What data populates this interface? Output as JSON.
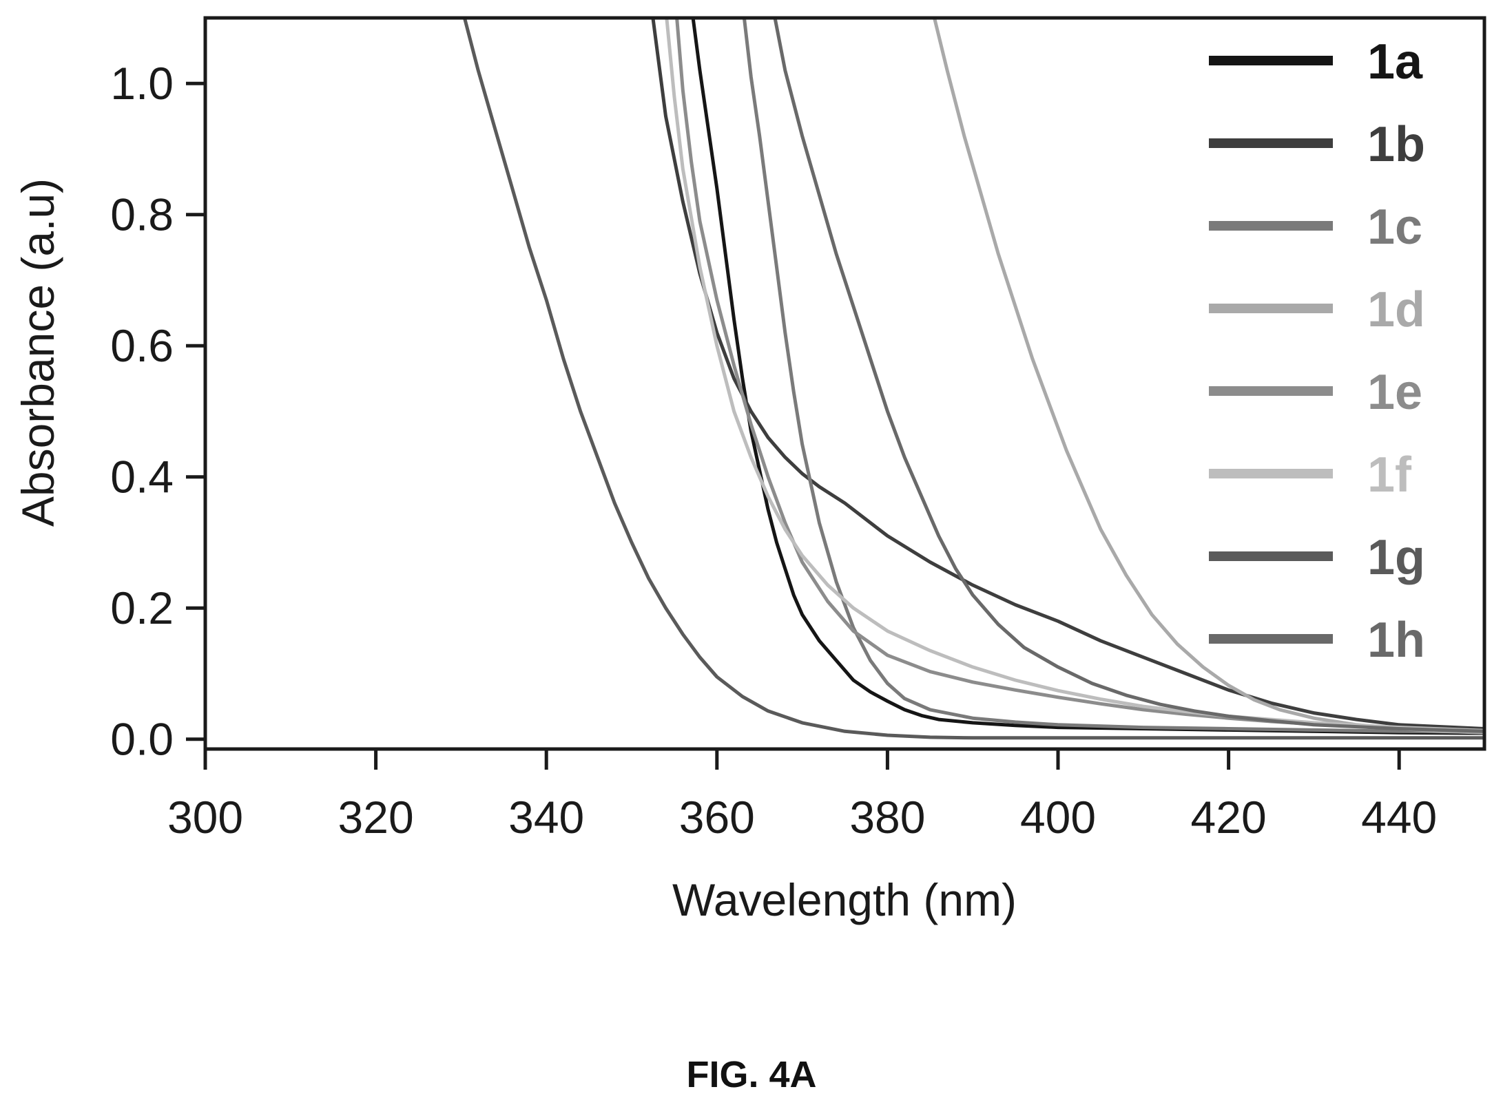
{
  "figure": {
    "caption": "FIG. 4A"
  },
  "chart_data": {
    "type": "line",
    "title": "",
    "xlabel": "Wavelength (nm)",
    "ylabel": "Absorbance (a.u)",
    "xlim": [
      300,
      450
    ],
    "ylim": [
      -0.015,
      1.1
    ],
    "xticks": [
      300,
      320,
      340,
      360,
      380,
      400,
      420,
      440
    ],
    "xtick_labels": [
      "300",
      "320",
      "340",
      "360",
      "380",
      "400",
      "420",
      "440"
    ],
    "yticks": [
      0.0,
      0.2,
      0.4,
      0.6,
      0.8,
      1.0
    ],
    "ytick_labels": [
      "0.0",
      "0.2",
      "0.4",
      "0.6",
      "0.8",
      "1.0"
    ],
    "grid": false,
    "legend_position": "top-right",
    "series": [
      {
        "name": "1a",
        "color": "#151515",
        "x": [
          357.2,
          358,
          359,
          360,
          361,
          362,
          363,
          364,
          365,
          366,
          367,
          368,
          369,
          370,
          372,
          374,
          376,
          378,
          380,
          382,
          384,
          386,
          390,
          395,
          400,
          410,
          420,
          430,
          440,
          450
        ],
        "y": [
          1.1,
          1.02,
          0.93,
          0.84,
          0.74,
          0.64,
          0.55,
          0.47,
          0.41,
          0.35,
          0.3,
          0.26,
          0.22,
          0.19,
          0.15,
          0.12,
          0.09,
          0.072,
          0.058,
          0.045,
          0.036,
          0.03,
          0.025,
          0.021,
          0.018,
          0.016,
          0.014,
          0.012,
          0.01,
          0.009
        ]
      },
      {
        "name": "1b",
        "color": "#3e3e3e",
        "x": [
          352.5,
          354,
          356,
          358,
          360,
          362,
          364,
          366,
          368,
          370,
          372,
          375,
          378,
          380,
          385,
          390,
          395,
          400,
          405,
          410,
          415,
          420,
          425,
          430,
          435,
          440,
          450
        ],
        "y": [
          1.1,
          0.95,
          0.82,
          0.71,
          0.62,
          0.55,
          0.5,
          0.46,
          0.43,
          0.405,
          0.385,
          0.36,
          0.33,
          0.31,
          0.27,
          0.235,
          0.205,
          0.18,
          0.15,
          0.125,
          0.1,
          0.075,
          0.055,
          0.04,
          0.03,
          0.022,
          0.016
        ]
      },
      {
        "name": "1c",
        "color": "#7a7a7a",
        "x": [
          363.2,
          364,
          365,
          366,
          367,
          368,
          369,
          370,
          371,
          372,
          374,
          376,
          378,
          380,
          382,
          385,
          390,
          395,
          400,
          410,
          420,
          430,
          440,
          450
        ],
        "y": [
          1.1,
          1.01,
          0.92,
          0.82,
          0.72,
          0.62,
          0.53,
          0.45,
          0.39,
          0.33,
          0.24,
          0.17,
          0.12,
          0.085,
          0.062,
          0.045,
          0.032,
          0.026,
          0.022,
          0.018,
          0.016,
          0.014,
          0.012,
          0.011
        ]
      },
      {
        "name": "1d",
        "color": "#a9a9a9",
        "x": [
          385.5,
          387,
          389,
          391,
          393,
          395,
          397,
          399,
          401,
          403,
          405,
          408,
          411,
          414,
          417,
          420,
          423,
          426,
          430,
          435,
          440,
          445,
          450
        ],
        "y": [
          1.1,
          1.02,
          0.92,
          0.83,
          0.74,
          0.66,
          0.58,
          0.51,
          0.44,
          0.38,
          0.32,
          0.25,
          0.19,
          0.145,
          0.11,
          0.082,
          0.06,
          0.045,
          0.032,
          0.022,
          0.016,
          0.012,
          0.01
        ]
      },
      {
        "name": "1e",
        "color": "#8c8c8c",
        "x": [
          355.3,
          356,
          357,
          358,
          360,
          362,
          364,
          366,
          368,
          370,
          373,
          376,
          380,
          385,
          390,
          395,
          400,
          405,
          410,
          415,
          420,
          425,
          430,
          440,
          450
        ],
        "y": [
          1.1,
          0.99,
          0.88,
          0.79,
          0.67,
          0.57,
          0.48,
          0.4,
          0.33,
          0.27,
          0.21,
          0.165,
          0.128,
          0.103,
          0.087,
          0.075,
          0.064,
          0.054,
          0.045,
          0.038,
          0.032,
          0.027,
          0.023,
          0.016,
          0.012
        ]
      },
      {
        "name": "1f",
        "color": "#bdbdbd",
        "x": [
          354.1,
          355,
          356,
          358,
          360,
          362,
          364,
          366,
          368,
          370,
          373,
          376,
          380,
          385,
          390,
          395,
          400,
          405,
          410,
          415,
          420,
          430,
          440,
          450
        ],
        "y": [
          1.1,
          0.98,
          0.87,
          0.72,
          0.6,
          0.5,
          0.43,
          0.37,
          0.32,
          0.28,
          0.235,
          0.2,
          0.165,
          0.135,
          0.11,
          0.09,
          0.074,
          0.061,
          0.05,
          0.042,
          0.035,
          0.025,
          0.018,
          0.013
        ]
      },
      {
        "name": "1g",
        "color": "#5a5a5a",
        "x": [
          330.4,
          332,
          334,
          336,
          338,
          340,
          342,
          344,
          346,
          348,
          350,
          352,
          354,
          356,
          358,
          360,
          363,
          366,
          370,
          375,
          380,
          385,
          390,
          400,
          410,
          420,
          430,
          440,
          450
        ],
        "y": [
          1.1,
          1.02,
          0.93,
          0.84,
          0.75,
          0.67,
          0.58,
          0.5,
          0.43,
          0.36,
          0.3,
          0.245,
          0.2,
          0.16,
          0.125,
          0.095,
          0.065,
          0.043,
          0.025,
          0.012,
          0.006,
          0.003,
          0.002,
          0.002,
          0.002,
          0.002,
          0.002,
          0.002,
          0.002
        ]
      },
      {
        "name": "1h",
        "color": "#696969",
        "x": [
          366.8,
          368,
          370,
          372,
          374,
          376,
          378,
          380,
          382,
          384,
          386,
          388,
          390,
          393,
          396,
          400,
          404,
          408,
          412,
          416,
          420,
          425,
          430,
          440,
          450
        ],
        "y": [
          1.1,
          1.02,
          0.92,
          0.83,
          0.74,
          0.66,
          0.58,
          0.5,
          0.43,
          0.37,
          0.31,
          0.26,
          0.22,
          0.175,
          0.14,
          0.11,
          0.085,
          0.067,
          0.053,
          0.043,
          0.035,
          0.028,
          0.022,
          0.016,
          0.012
        ]
      }
    ]
  }
}
